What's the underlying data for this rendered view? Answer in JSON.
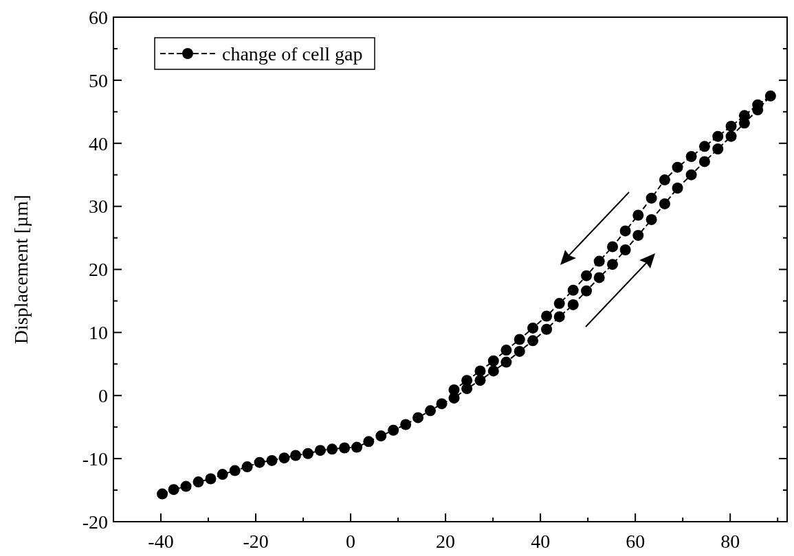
{
  "chart_data": {
    "type": "line",
    "ylabel": "Displacement [µm]",
    "xlim": [
      -50,
      92
    ],
    "ylim": [
      -20,
      60
    ],
    "xticks": [
      -40,
      {
        "value": -30,
        "label": null
      },
      -20,
      {
        "value": -10,
        "label": null
      },
      0,
      {
        "value": 10,
        "label": null
      },
      20,
      {
        "value": 30,
        "label": null
      },
      40,
      {
        "value": 50,
        "label": null
      },
      60,
      {
        "value": 70,
        "label": null
      },
      80,
      {
        "value": 90,
        "label": null
      }
    ],
    "yticks": [
      -20,
      {
        "value": -15,
        "label": null
      },
      -10,
      {
        "value": -5,
        "label": null
      },
      0,
      {
        "value": 5,
        "label": null
      },
      10,
      {
        "value": 15,
        "label": null
      },
      20,
      {
        "value": 25,
        "label": null
      },
      30,
      {
        "value": 35,
        "label": null
      },
      40,
      {
        "value": 45,
        "label": null
      },
      50,
      {
        "value": 55,
        "label": null
      },
      60
    ],
    "legend": "top left",
    "marker": "circle",
    "line_style": "dashed",
    "grid": false,
    "series": [
      {
        "name": "change of cell gap",
        "color": "#000000",
        "x": [
          -39.7,
          -37.3,
          -34.7,
          -32.1,
          -29.5,
          -27.0,
          -24.4,
          -21.8,
          -19.2,
          -16.6,
          -14.0,
          -11.6,
          -9.0,
          -6.4,
          -3.9,
          -1.3,
          1.3,
          3.8,
          6.4,
          9.0,
          11.6,
          14.2,
          16.8,
          19.2,
          21.8,
          24.5,
          27.3,
          30.1,
          32.8,
          35.6,
          38.4,
          41.3,
          44.0,
          46.9,
          49.7,
          52.4,
          55.2,
          57.9,
          60.6,
          63.4,
          66.2,
          68.9,
          71.8,
          74.6,
          77.4,
          80.2,
          83.0,
          85.8,
          88.5,
          85.8,
          83.0,
          80.2,
          77.4,
          74.6,
          71.8,
          68.9,
          66.2,
          63.4,
          60.6,
          57.9,
          55.2,
          52.4,
          49.7,
          46.9,
          44.0,
          41.3,
          38.4,
          35.6,
          32.8,
          30.1,
          27.3,
          24.5,
          21.8
        ],
        "values": [
          -15.6,
          -14.9,
          -14.4,
          -13.7,
          -13.2,
          -12.5,
          -11.9,
          -11.3,
          -10.6,
          -10.3,
          -9.9,
          -9.5,
          -9.2,
          -8.7,
          -8.5,
          -8.3,
          -8.2,
          -7.3,
          -6.4,
          -5.5,
          -4.6,
          -3.5,
          -2.4,
          -1.3,
          -0.4,
          1.1,
          2.4,
          3.9,
          5.3,
          7.0,
          8.7,
          10.5,
          12.5,
          14.4,
          16.6,
          18.7,
          20.8,
          23.1,
          25.4,
          27.9,
          30.4,
          32.9,
          35.0,
          37.1,
          39.1,
          41.1,
          43.2,
          45.3,
          47.5,
          46.1,
          44.4,
          42.7,
          41.1,
          39.5,
          37.9,
          36.2,
          34.2,
          31.3,
          28.6,
          26.1,
          23.6,
          21.3,
          19.0,
          16.7,
          14.6,
          12.6,
          10.7,
          8.9,
          7.2,
          5.5,
          3.9,
          2.4,
          0.9
        ]
      }
    ]
  }
}
